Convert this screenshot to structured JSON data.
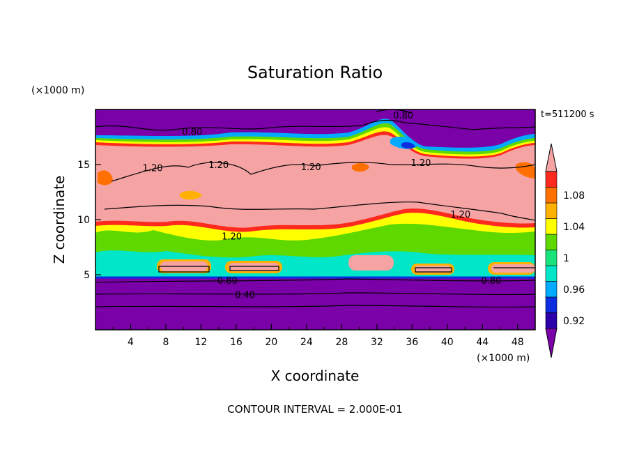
{
  "chart_data": {
    "type": "heatmap",
    "title": "Saturation Ratio",
    "xlabel": "X coordinate",
    "ylabel": "Z coordinate",
    "x_unit": "(×1000 m)",
    "y_unit": "(×1000 m)",
    "time_label": "t=511200 s",
    "footer": "CONTOUR INTERVAL = 2.000E-01",
    "xlim": [
      0,
      50
    ],
    "ylim": [
      0,
      20
    ],
    "x_ticks": [
      4,
      8,
      12,
      16,
      20,
      24,
      28,
      32,
      36,
      40,
      44,
      48
    ],
    "y_ticks": [
      5,
      10,
      15
    ],
    "colorbar": {
      "levels": [
        0.92,
        0.94,
        0.96,
        0.98,
        1.0,
        1.02,
        1.04,
        1.06,
        1.08,
        1.1
      ],
      "tick_labels": [
        "0.92",
        "0.96",
        "1",
        "1.04",
        "1.08"
      ],
      "colors": [
        "#7a00a8",
        "#2b00a8",
        "#0a2ee0",
        "#00aaff",
        "#00e6c8",
        "#19e37a",
        "#5fd800",
        "#ffff00",
        "#ffb000",
        "#ff7000",
        "#ff2a1e",
        "#f5a3a3"
      ]
    },
    "contour_labels": [
      {
        "text": "0.80",
        "x": 35,
        "z": 19.5
      },
      {
        "text": "0.80",
        "x": 11,
        "z": 18
      },
      {
        "text": "1.20",
        "x": 6.5,
        "z": 14.7
      },
      {
        "text": "1.20",
        "x": 14,
        "z": 15
      },
      {
        "text": "1.20",
        "x": 24.5,
        "z": 14.8
      },
      {
        "text": "1.20",
        "x": 37,
        "z": 15.2
      },
      {
        "text": "1.20",
        "x": 41.5,
        "z": 10.5
      },
      {
        "text": "1.20",
        "x": 15.5,
        "z": 8.5
      },
      {
        "text": "0.80",
        "x": 15,
        "z": 4.5
      },
      {
        "text": "0.40",
        "x": 17,
        "z": 3.2
      },
      {
        "text": "0.80",
        "x": 45,
        "z": 4.5
      }
    ]
  }
}
